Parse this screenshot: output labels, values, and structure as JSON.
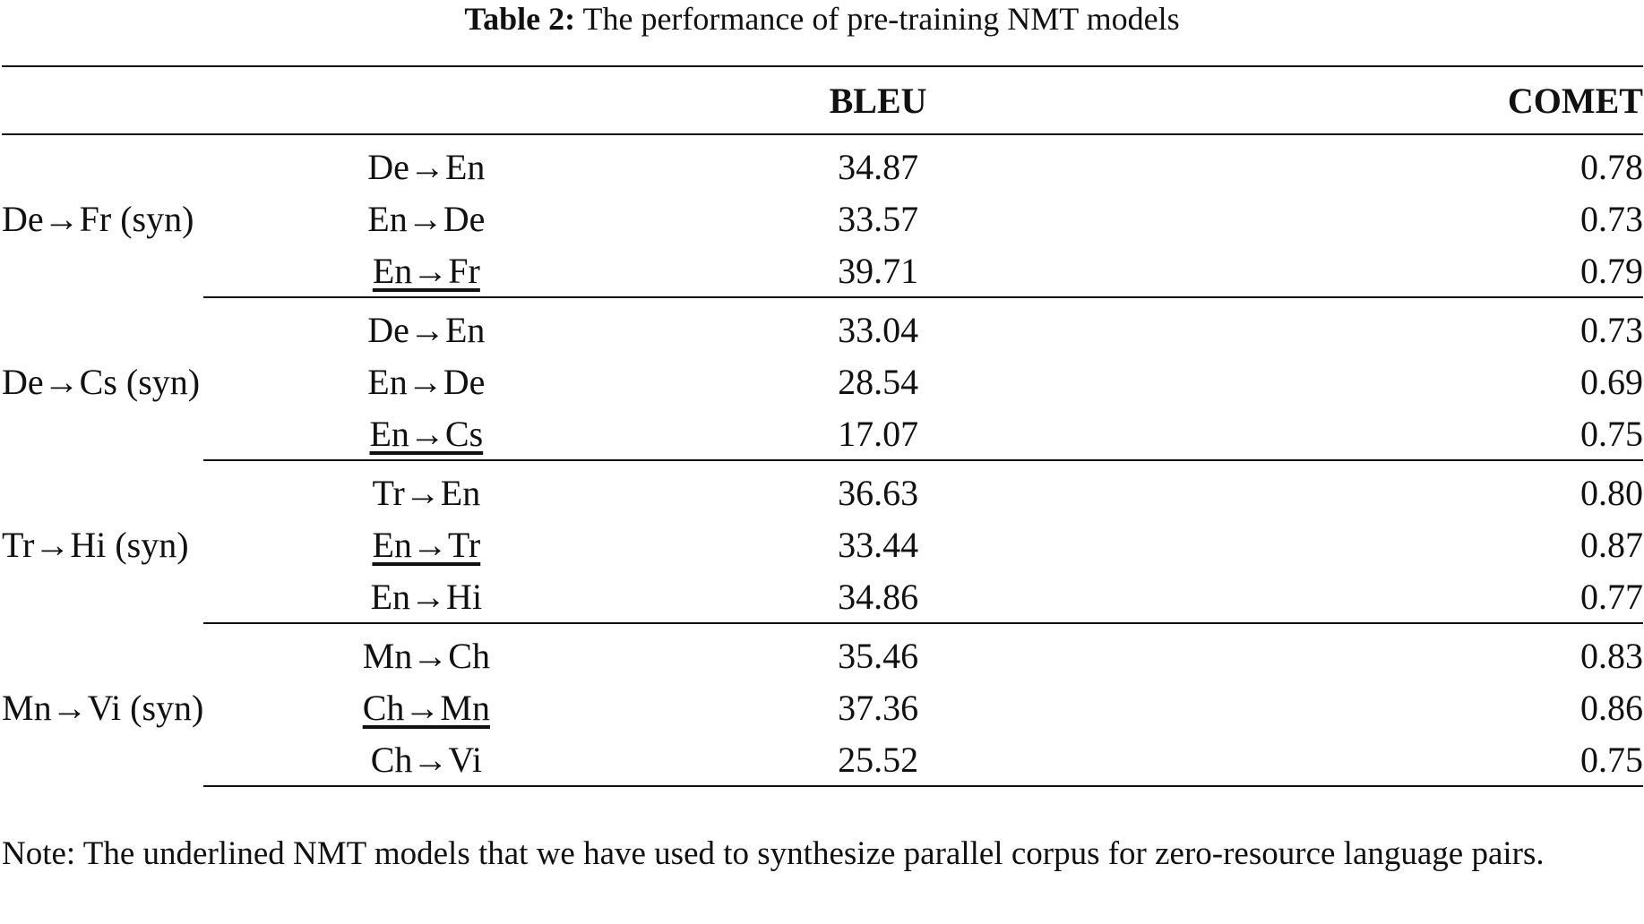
{
  "caption": {
    "lead": "Table 2:",
    "text": "The performance of pre-training NMT models"
  },
  "table": {
    "headers": [
      "",
      "",
      "BLEU",
      "COMET"
    ],
    "groups": [
      {
        "label": "De→Fr (syn)",
        "rows": [
          {
            "model": "De→En",
            "bleu": "34.87",
            "comet": "0.78",
            "underlined": false
          },
          {
            "model": "En→De",
            "bleu": "33.57",
            "comet": "0.73",
            "underlined": false
          },
          {
            "model": "En→Fr",
            "bleu": "39.71",
            "comet": "0.79",
            "underlined": true
          }
        ]
      },
      {
        "label": "De→Cs (syn)",
        "rows": [
          {
            "model": "De→En",
            "bleu": "33.04",
            "comet": "0.73",
            "underlined": false
          },
          {
            "model": "En→De",
            "bleu": "28.54",
            "comet": "0.69",
            "underlined": false
          },
          {
            "model": "En→Cs",
            "bleu": "17.07",
            "comet": "0.75",
            "underlined": true
          }
        ]
      },
      {
        "label": "Tr→Hi (syn)",
        "rows": [
          {
            "model": "Tr→En",
            "bleu": "36.63",
            "comet": "0.80",
            "underlined": false
          },
          {
            "model": "En→Tr",
            "bleu": "33.44",
            "comet": "0.87",
            "underlined": true
          },
          {
            "model": "En→Hi",
            "bleu": "34.86",
            "comet": "0.77",
            "underlined": false
          }
        ]
      },
      {
        "label": "Mn→Vi (syn)",
        "rows": [
          {
            "model": "Mn→Ch",
            "bleu": "35.46",
            "comet": "0.83",
            "underlined": false
          },
          {
            "model": "Ch→Mn",
            "bleu": "37.36",
            "comet": "0.86",
            "underlined": true
          },
          {
            "model": "Ch→Vi",
            "bleu": "25.52",
            "comet": "0.75",
            "underlined": false
          }
        ]
      }
    ]
  },
  "note": "Note: The underlined NMT models that we have used to synthesize parallel corpus for zero-resource language pairs."
}
